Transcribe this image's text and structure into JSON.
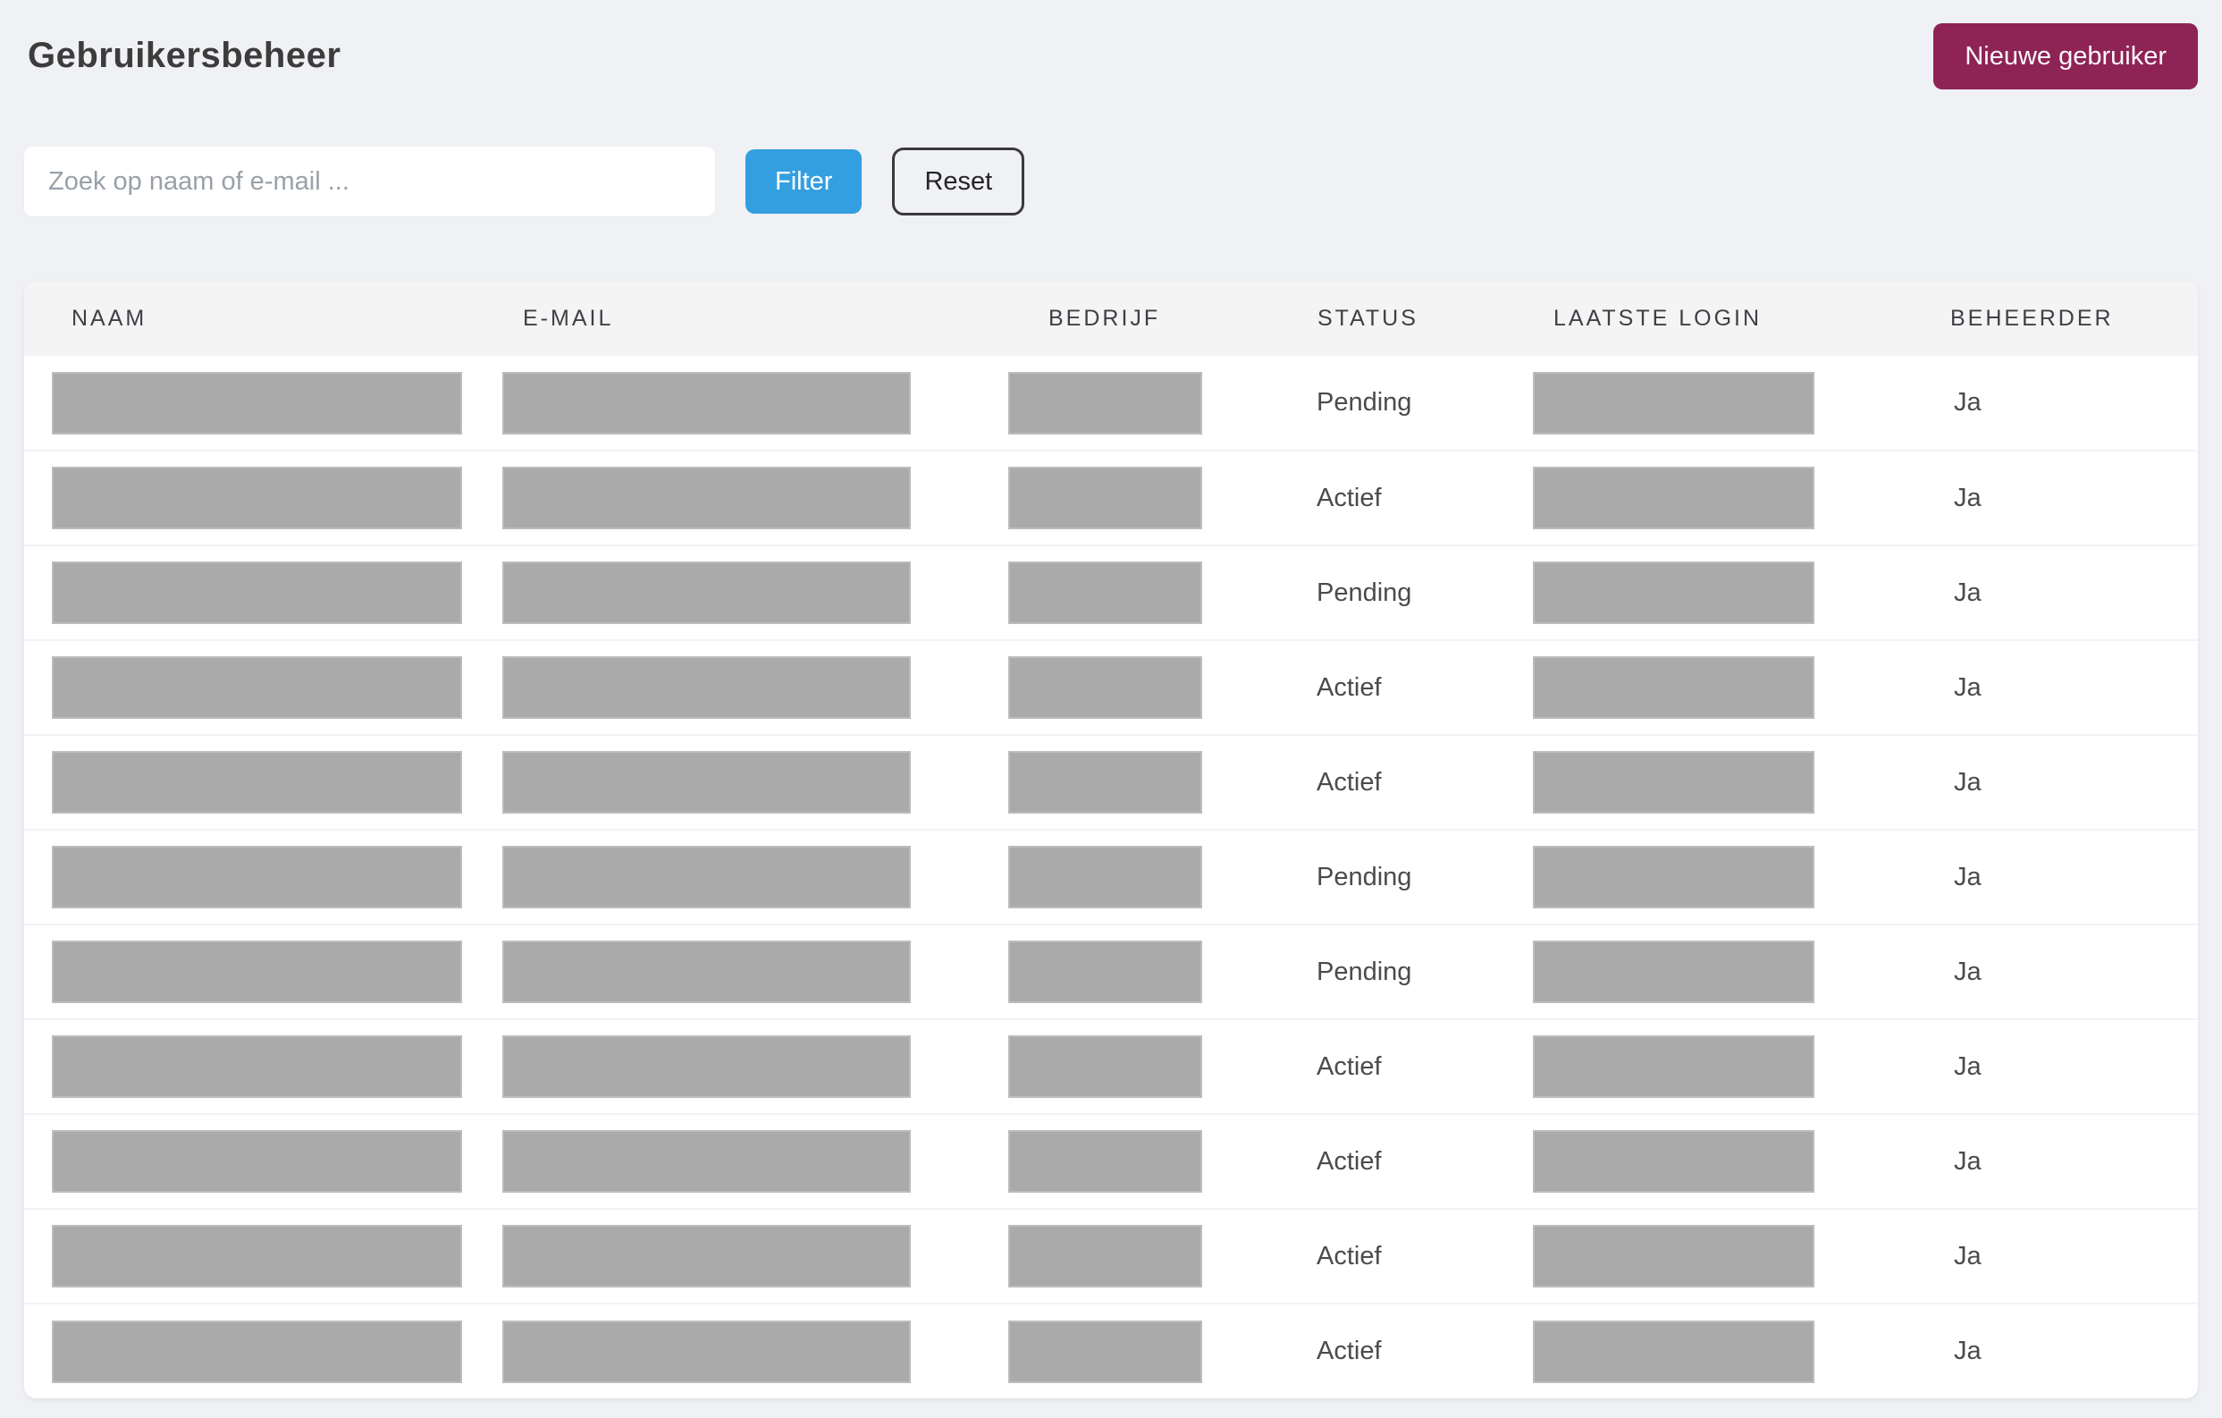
{
  "page": {
    "title": "Gebruikersbeheer"
  },
  "actions": {
    "new_user_label": "Nieuwe gebruiker"
  },
  "search": {
    "placeholder": "Zoek op naam of e-mail ...",
    "value": "",
    "filter_label": "Filter",
    "reset_label": "Reset"
  },
  "table": {
    "columns": [
      "NAAM",
      "E-MAIL",
      "BEDRIJF",
      "STATUS",
      "LAATSTE LOGIN",
      "BEHEERDER"
    ],
    "redacted_columns": [
      "NAAM",
      "E-MAIL",
      "BEDRIJF",
      "LAATSTE LOGIN"
    ],
    "rows": [
      {
        "status": "Pending",
        "beheerder": "Ja"
      },
      {
        "status": "Actief",
        "beheerder": "Ja"
      },
      {
        "status": "Pending",
        "beheerder": "Ja"
      },
      {
        "status": "Actief",
        "beheerder": "Ja"
      },
      {
        "status": "Actief",
        "beheerder": "Ja"
      },
      {
        "status": "Pending",
        "beheerder": "Ja"
      },
      {
        "status": "Pending",
        "beheerder": "Ja"
      },
      {
        "status": "Actief",
        "beheerder": "Ja"
      },
      {
        "status": "Actief",
        "beheerder": "Ja"
      },
      {
        "status": "Actief",
        "beheerder": "Ja"
      },
      {
        "status": "Actief",
        "beheerder": "Ja"
      }
    ]
  },
  "colors": {
    "page_background": "#eff1f4",
    "accent_maroon": "#8e2356",
    "accent_blue": "#339fe0",
    "table_header_background": "#f4f4f5",
    "placeholder_block": "#aaaaaa"
  }
}
